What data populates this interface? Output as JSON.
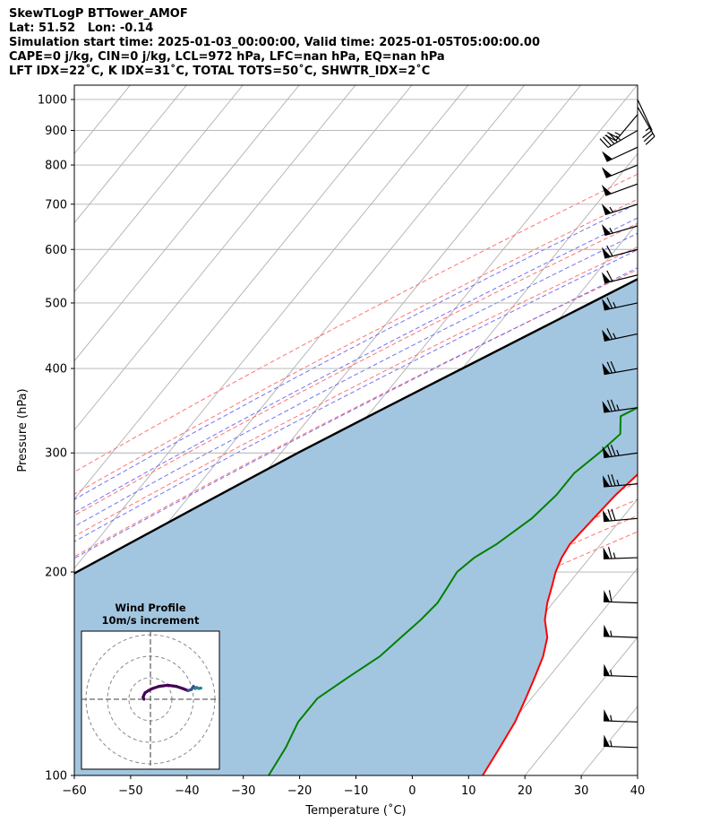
{
  "header": {
    "lines": [
      "SkewTLogP BTTower_AMOF",
      "Lat: 51.52   Lon: -0.14",
      "Simulation start time: 2025-01-03_00:00:00, Valid time: 2025-01-05T05:00:00.00",
      "CAPE=0 j/kg, CIN=0 j/kg, LCL=972 hPa, LFC=nan hPa, EQ=nan hPa",
      "LFT IDX=22˚C, K IDX=31˚C, TOTAL TOTS=50˚C, SHWTR_IDX=2˚C"
    ]
  },
  "chart_data": {
    "type": "line",
    "subtype": "skew-t log-p",
    "xlabel": "Temperature (˚C)",
    "ylabel": "Pressure (hPa)",
    "xlim": [
      -60,
      40
    ],
    "ylim": [
      1050,
      100
    ],
    "y_scale": "log",
    "x_ticks": [
      "−60",
      "−50",
      "−40",
      "−30",
      "−20",
      "−10",
      "0",
      "10",
      "20",
      "30",
      "40"
    ],
    "y_ticks": [
      {
        "p": 100,
        "label": "100"
      },
      {
        "p": 200,
        "label": "200"
      },
      {
        "p": 300,
        "label": "300"
      },
      {
        "p": 400,
        "label": "400"
      },
      {
        "p": 500,
        "label": "500"
      },
      {
        "p": 600,
        "label": "600"
      },
      {
        "p": 700,
        "label": "700"
      },
      {
        "p": 800,
        "label": "800"
      },
      {
        "p": 900,
        "label": "900"
      },
      {
        "p": 1000,
        "label": "1000"
      }
    ],
    "grid": true,
    "colors": {
      "temperature": "#ff0000",
      "dewpoint": "#008000",
      "parcel": "#000000",
      "shading": "#a3c6e0",
      "dry_adiabats": "#ff6464",
      "moist_adiabats": "#5a5af0",
      "isotherms": "#b0b0b0",
      "mixing_ratio": "#9933cc"
    },
    "temperature": [
      {
        "p": 973,
        "t": 2.0
      },
      {
        "p": 960,
        "t": 6.0
      },
      {
        "p": 920,
        "t": 10.5
      },
      {
        "p": 880,
        "t": 12.5
      },
      {
        "p": 850,
        "t": 13.0
      },
      {
        "p": 800,
        "t": 12.0
      },
      {
        "p": 750,
        "t": 10.5
      },
      {
        "p": 700,
        "t": 9.3
      },
      {
        "p": 650,
        "t": 8.2
      },
      {
        "p": 600,
        "t": 6.9
      },
      {
        "p": 550,
        "t": 5.7
      },
      {
        "p": 500,
        "t": 4.5
      },
      {
        "p": 450,
        "t": 2.7
      },
      {
        "p": 400,
        "t": 0.7
      },
      {
        "p": 360,
        "t": -0.5
      },
      {
        "p": 330,
        "t": -1.3
      },
      {
        "p": 300,
        "t": -2.5
      },
      {
        "p": 280,
        "t": -3.5
      },
      {
        "p": 260,
        "t": -4.5
      },
      {
        "p": 240,
        "t": -5.0
      },
      {
        "p": 220,
        "t": -5.5
      },
      {
        "p": 210,
        "t": -5.0
      },
      {
        "p": 200,
        "t": -4.0
      },
      {
        "p": 190,
        "t": -2.5
      },
      {
        "p": 180,
        "t": -1.0
      },
      {
        "p": 170,
        "t": 1.0
      },
      {
        "p": 160,
        "t": 4.0
      },
      {
        "p": 150,
        "t": 6.0
      },
      {
        "p": 140,
        "t": 7.5
      },
      {
        "p": 130,
        "t": 9.0
      },
      {
        "p": 120,
        "t": 10.5
      },
      {
        "p": 110,
        "t": 11.5
      },
      {
        "p": 100,
        "t": 12.5
      }
    ],
    "dewpoint": [
      {
        "p": 973,
        "td": 2.0
      },
      {
        "p": 960,
        "td": 5.0
      },
      {
        "p": 940,
        "td": 8.0
      },
      {
        "p": 920,
        "td": 10.5
      },
      {
        "p": 900,
        "td": 12.0
      },
      {
        "p": 880,
        "td": 13.0
      },
      {
        "p": 850,
        "td": 12.5
      },
      {
        "p": 800,
        "td": 10.5
      },
      {
        "p": 750,
        "td": 9.0
      },
      {
        "p": 700,
        "td": 7.7
      },
      {
        "p": 650,
        "td": 6.5
      },
      {
        "p": 600,
        "td": 5.0
      },
      {
        "p": 550,
        "td": 2.5
      },
      {
        "p": 500,
        "td": -0.5
      },
      {
        "p": 450,
        "td": -3.0
      },
      {
        "p": 420,
        "td": -4.3
      },
      {
        "p": 400,
        "td": -5.5
      },
      {
        "p": 380,
        "td": -7.5
      },
      {
        "p": 360,
        "td": -11.5
      },
      {
        "p": 340,
        "td": -15.0
      },
      {
        "p": 320,
        "td": -12.5
      },
      {
        "p": 300,
        "td": -13.5
      },
      {
        "p": 280,
        "td": -15.0
      },
      {
        "p": 260,
        "td": -15.0
      },
      {
        "p": 240,
        "td": -16.0
      },
      {
        "p": 220,
        "td": -18.5
      },
      {
        "p": 210,
        "td": -20.5
      },
      {
        "p": 200,
        "td": -21.5
      },
      {
        "p": 190,
        "td": -21.0
      },
      {
        "p": 180,
        "td": -20.5
      },
      {
        "p": 170,
        "td": -21.0
      },
      {
        "p": 160,
        "td": -22.0
      },
      {
        "p": 150,
        "td": -23.0
      },
      {
        "p": 140,
        "td": -25.5
      },
      {
        "p": 130,
        "td": -28.0
      },
      {
        "p": 120,
        "td": -28.0
      },
      {
        "p": 110,
        "td": -26.5
      },
      {
        "p": 100,
        "td": -25.5
      }
    ],
    "parcel": [
      {
        "p": 975,
        "t": 2.0
      },
      {
        "p": 950,
        "t": 0.4
      },
      {
        "p": 900,
        "t": -2.6
      },
      {
        "p": 850,
        "t": -5.8
      },
      {
        "p": 800,
        "t": -9.3
      },
      {
        "p": 750,
        "t": -13.0
      },
      {
        "p": 700,
        "t": -17.0
      },
      {
        "p": 650,
        "t": -21.3
      },
      {
        "p": 600,
        "t": -26.0
      },
      {
        "p": 550,
        "t": -31.0
      },
      {
        "p": 500,
        "t": -36.7
      },
      {
        "p": 450,
        "t": -43.0
      },
      {
        "p": 400,
        "t": -50.0
      },
      {
        "p": 350,
        "t": -58.0
      },
      {
        "p": 300,
        "t": -67.0
      },
      {
        "p": 250,
        "t": -77.0
      },
      {
        "p": 200,
        "t": -89.0
      },
      {
        "p": 150,
        "t": -104.0
      },
      {
        "p": 125,
        "t": -113.0
      },
      {
        "p": 100,
        "t": -123.5
      }
    ],
    "dry_adiabats_theta_c": [
      -30,
      -20,
      -10,
      0,
      10,
      20,
      30,
      40,
      50,
      60,
      70,
      80,
      90,
      100,
      110,
      120,
      130,
      140,
      150
    ],
    "moist_adiabats_theta_c": [
      -20,
      -15,
      -10,
      -5,
      0,
      5,
      10,
      15,
      20,
      25,
      30,
      35
    ],
    "mixing_ratio_lines_g_kg": [
      0.4,
      1.0
    ],
    "wind_barbs": [
      {
        "p": 1000,
        "speed_kt": 15,
        "dir": 155
      },
      {
        "p": 975,
        "speed_kt": 20,
        "dir": 150
      },
      {
        "p": 950,
        "speed_kt": 25,
        "dir": 220
      },
      {
        "p": 900,
        "speed_kt": 45,
        "dir": 240
      },
      {
        "p": 850,
        "speed_kt": 50,
        "dir": 245
      },
      {
        "p": 800,
        "speed_kt": 50,
        "dir": 248
      },
      {
        "p": 750,
        "speed_kt": 50,
        "dir": 250
      },
      {
        "p": 700,
        "speed_kt": 55,
        "dir": 252
      },
      {
        "p": 650,
        "speed_kt": 55,
        "dir": 254
      },
      {
        "p": 600,
        "speed_kt": 60,
        "dir": 255
      },
      {
        "p": 550,
        "speed_kt": 60,
        "dir": 256
      },
      {
        "p": 500,
        "speed_kt": 65,
        "dir": 258
      },
      {
        "p": 450,
        "speed_kt": 65,
        "dir": 258
      },
      {
        "p": 400,
        "speed_kt": 70,
        "dir": 260
      },
      {
        "p": 350,
        "speed_kt": 75,
        "dir": 262
      },
      {
        "p": 300,
        "speed_kt": 75,
        "dir": 262
      },
      {
        "p": 270,
        "speed_kt": 75,
        "dir": 265
      },
      {
        "p": 240,
        "speed_kt": 70,
        "dir": 265
      },
      {
        "p": 210,
        "speed_kt": 65,
        "dir": 268
      },
      {
        "p": 180,
        "speed_kt": 60,
        "dir": 272
      },
      {
        "p": 160,
        "speed_kt": 55,
        "dir": 272
      },
      {
        "p": 140,
        "speed_kt": 55,
        "dir": 272
      },
      {
        "p": 120,
        "speed_kt": 55,
        "dir": 272
      },
      {
        "p": 110,
        "speed_kt": 55,
        "dir": 272
      }
    ],
    "hodograph": {
      "title": "Wind Profile",
      "subtitle": "10m/s increment",
      "rings_ms": [
        10,
        20,
        30
      ],
      "points": [
        {
          "u": -3.0,
          "v": 0.0
        },
        {
          "u": -3.4,
          "v": 1.0
        },
        {
          "u": -3.0,
          "v": 2.0
        },
        {
          "u": -2.5,
          "v": 3.0
        },
        {
          "u": -1.0,
          "v": 4.0
        },
        {
          "u": 1.0,
          "v": 5.0
        },
        {
          "u": 4.0,
          "v": 6.0
        },
        {
          "u": 8.0,
          "v": 6.5
        },
        {
          "u": 12.0,
          "v": 6.0
        },
        {
          "u": 15.0,
          "v": 5.0
        },
        {
          "u": 17.5,
          "v": 4.0
        },
        {
          "u": 19.0,
          "v": 4.5
        },
        {
          "u": 20.0,
          "v": 6.0
        },
        {
          "u": 20.8,
          "v": 5.0
        },
        {
          "u": 21.5,
          "v": 5.5
        },
        {
          "u": 22.5,
          "v": 5.0
        },
        {
          "u": 23.5,
          "v": 5.2
        }
      ],
      "colors": [
        "#440154",
        "#26828e",
        "#3b528b"
      ]
    }
  }
}
